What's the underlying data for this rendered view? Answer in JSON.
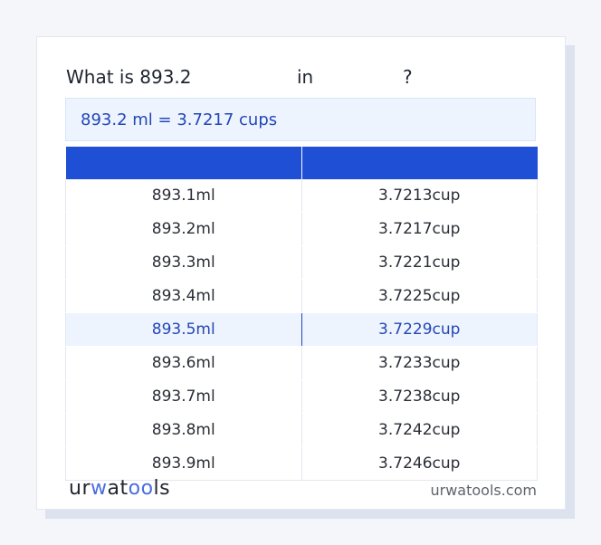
{
  "title": {
    "prefix": "What is 893.2",
    "in": "in",
    "q": "?"
  },
  "result": "893.2 ml = 3.7217 cups",
  "table": {
    "headers": [
      "",
      ""
    ],
    "rows": [
      [
        "893.1ml",
        "3.7213cup"
      ],
      [
        "893.2ml",
        "3.7217cup"
      ],
      [
        "893.3ml",
        "3.7221cup"
      ],
      [
        "893.4ml",
        "3.7225cup"
      ],
      [
        "893.5ml",
        "3.7229cup"
      ],
      [
        "893.6ml",
        "3.7233cup"
      ],
      [
        "893.7ml",
        "3.7238cup"
      ],
      [
        "893.8ml",
        "3.7242cup"
      ],
      [
        "893.9ml",
        "3.7246cup"
      ]
    ],
    "highlighted_row": 4
  },
  "footer": {
    "logo": "urwatools",
    "site": "urwatools.com"
  },
  "colors": {
    "accent": "#1e4fd4",
    "highlight_bg": "#edf4fe",
    "text_blue": "#2446b8"
  }
}
